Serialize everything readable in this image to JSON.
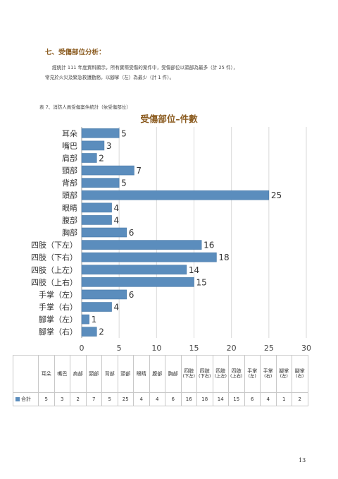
{
  "section": {
    "title": "七、受傷部位分析：",
    "paragraph_line1": "經統計 111 年度資料顯示，所有實際受傷的案件中，受傷部位以頭部為最多（計 25 件），",
    "paragraph_line2": "常見於火災及緊急救護勤務，以腳掌（左）為最少（計 1 件）。"
  },
  "caption": "表 7、消防人員受傷案件統計（依受傷部位）",
  "colors": {
    "bar": "#5b8dbd",
    "bar_edge": "#4a7aa8",
    "title": "#8a5a1e",
    "grid": "#d9d9d9"
  },
  "chart_data": {
    "type": "bar",
    "orientation": "horizontal",
    "title": "受傷部位–件數",
    "categories": [
      "耳朵",
      "嘴巴",
      "肩部",
      "頸部",
      "背部",
      "頭部",
      "眼睛",
      "腹部",
      "胸部",
      "四肢（下左）",
      "四肢（下右）",
      "四肢（上左）",
      "四肢（上右）",
      "手掌（左）",
      "手掌（右）",
      "腳掌（左）",
      "腳掌（右）"
    ],
    "values": [
      5,
      3,
      2,
      7,
      5,
      25,
      4,
      4,
      6,
      16,
      18,
      14,
      15,
      6,
      4,
      1,
      2
    ],
    "xlim": [
      0,
      30
    ],
    "xticks": [
      "0",
      "5",
      "10",
      "15",
      "20",
      "25",
      "30"
    ],
    "grid": true,
    "data_labels": true
  },
  "table": {
    "row_label": "合計",
    "headers": [
      {
        "top": "耳朵",
        "bottom": ""
      },
      {
        "top": "嘴巴",
        "bottom": ""
      },
      {
        "top": "肩部",
        "bottom": ""
      },
      {
        "top": "頸部",
        "bottom": ""
      },
      {
        "top": "背部",
        "bottom": ""
      },
      {
        "top": "頭部",
        "bottom": ""
      },
      {
        "top": "眼睛",
        "bottom": ""
      },
      {
        "top": "腹部",
        "bottom": ""
      },
      {
        "top": "胸部",
        "bottom": ""
      },
      {
        "top": "四肢",
        "bottom": "(下左)"
      },
      {
        "top": "四肢",
        "bottom": "(下右)"
      },
      {
        "top": "四肢",
        "bottom": "(上左)"
      },
      {
        "top": "四肢",
        "bottom": "(上右)"
      },
      {
        "top": "手掌",
        "bottom": "(左)"
      },
      {
        "top": "手掌",
        "bottom": "(右)"
      },
      {
        "top": "腳掌",
        "bottom": "(左)"
      },
      {
        "top": "腳掌",
        "bottom": "(右)"
      }
    ],
    "values": [
      "5",
      "3",
      "2",
      "7",
      "5",
      "25",
      "4",
      "4",
      "6",
      "16",
      "18",
      "14",
      "15",
      "6",
      "4",
      "1",
      "2"
    ]
  },
  "page_number": "13"
}
